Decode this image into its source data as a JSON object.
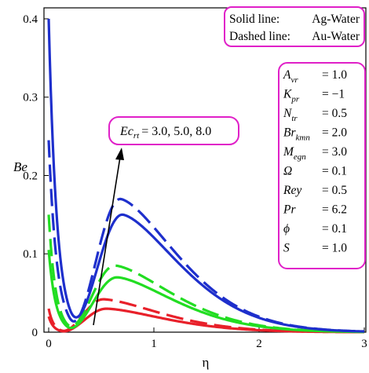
{
  "chart_data": {
    "type": "line",
    "xlabel": "η",
    "ylabel": "Be",
    "xlim": [
      0,
      3
    ],
    "ylim": [
      0,
      0.41
    ],
    "x_ticks": [
      "0",
      "1",
      "2",
      "3"
    ],
    "y_ticks": [
      "0",
      "0.1",
      "0.2",
      "0.3",
      "0.4"
    ],
    "grid": false,
    "legend": {
      "placement": "top-right",
      "solid_label": "Solid line:",
      "solid_value": "Ag-Water",
      "dashed_label": "Dashed line:",
      "dashed_value": "Au-Water"
    },
    "parameters": [
      {
        "name": "A",
        "sub": "vr",
        "value": "= 1.0"
      },
      {
        "name": "K",
        "sub": "pr",
        "value": "= −1"
      },
      {
        "name": "N",
        "sub": "tr",
        "value": "= 0.5"
      },
      {
        "name": "Br",
        "sub": "kmn",
        "value": "= 2.0"
      },
      {
        "name": "M",
        "sub": "egn",
        "value": "= 3.0"
      },
      {
        "name": "Ω",
        "sub": "",
        "value": "= 0.1"
      },
      {
        "name": "Rey",
        "sub": "",
        "value": "= 0.5"
      },
      {
        "name": "Pr",
        "sub": "",
        "value": "= 6.2"
      },
      {
        "name": "ϕ",
        "sub": "",
        "value": "= 0.1"
      },
      {
        "name": "S",
        "sub": "",
        "value": "= 1.0"
      }
    ],
    "annotation": {
      "name": "Ec",
      "sub": "rt",
      "values": "= 3.0, 5.0, 8.0"
    },
    "colors": {
      "red": "#e8202a",
      "green": "#22dd22",
      "blue": "#1e2fcc",
      "frame": "#e020c8"
    },
    "series": [
      {
        "color": "red",
        "style": "solid",
        "peak": 0.03,
        "peak_x": 0.55,
        "y0": 0.02,
        "min_x": 0.12
      },
      {
        "color": "red",
        "style": "dashed",
        "peak": 0.042,
        "peak_x": 0.52,
        "y0": 0.03,
        "min_x": 0.12
      },
      {
        "color": "green",
        "style": "solid",
        "peak": 0.07,
        "peak_x": 0.65,
        "y0": 0.105,
        "min_x": 0.17
      },
      {
        "color": "green",
        "style": "dashed",
        "peak": 0.085,
        "peak_x": 0.63,
        "y0": 0.15,
        "min_x": 0.17
      },
      {
        "color": "blue",
        "style": "solid",
        "peak": 0.15,
        "peak_x": 0.7,
        "y0": 0.4,
        "min_x": 0.2
      },
      {
        "color": "blue",
        "style": "dashed",
        "peak": 0.17,
        "peak_x": 0.68,
        "y0": 0.245,
        "min_x": 0.2
      }
    ]
  }
}
